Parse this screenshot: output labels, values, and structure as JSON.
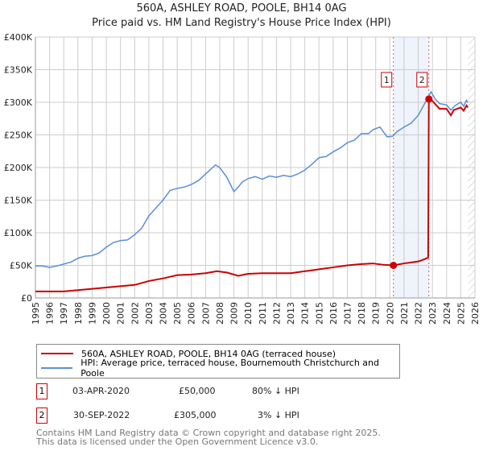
{
  "title": "560A, ASHLEY ROAD, POOLE, BH14 0AG",
  "subtitle": "Price paid vs. HM Land Registry's House Price Index (HPI)",
  "chart_data": {
    "type": "line",
    "xlim": [
      1995,
      2026
    ],
    "ylim": [
      0,
      400000
    ],
    "x_ticks": [
      "1995",
      "1996",
      "1997",
      "1998",
      "1999",
      "2000",
      "2001",
      "2002",
      "2003",
      "2004",
      "2005",
      "2006",
      "2007",
      "2008",
      "2009",
      "2010",
      "2011",
      "2012",
      "2013",
      "2014",
      "2015",
      "2016",
      "2017",
      "2018",
      "2019",
      "2020",
      "2021",
      "2022",
      "2023",
      "2024",
      "2025",
      "2026"
    ],
    "y_ticks": [
      {
        "v": 0,
        "label": "£0"
      },
      {
        "v": 50000,
        "label": "£50K"
      },
      {
        "v": 100000,
        "label": "£100K"
      },
      {
        "v": 150000,
        "label": "£150K"
      },
      {
        "v": 200000,
        "label": "£200K"
      },
      {
        "v": 250000,
        "label": "£250K"
      },
      {
        "v": 300000,
        "label": "£300K"
      },
      {
        "v": 350000,
        "label": "£350K"
      },
      {
        "v": 400000,
        "label": "£400K"
      }
    ],
    "shaded_range": [
      2020.25,
      2022.75
    ],
    "forecast_from": 2025.5,
    "series": [
      {
        "name": "560A, ASHLEY ROAD, POOLE, BH14 0AG (terraced house)",
        "color": "#cc0000",
        "x": [
          1995,
          1996,
          1997,
          1998,
          1999,
          2000,
          2001,
          2002,
          2003,
          2004,
          2005,
          2006,
          2007,
          2007.8,
          2008.5,
          2009.3,
          2010,
          2011,
          2012,
          2013,
          2014,
          2015,
          2016,
          2017,
          2018,
          2018.8,
          2019.5,
          2020.25,
          2021,
          2022,
          2022.5,
          2022.7,
          2022.75,
          2023,
          2023.5,
          2024,
          2024.3,
          2024.5,
          2025,
          2025.2,
          2025.4,
          2025.5
        ],
        "y": [
          10000,
          10000,
          10000,
          12000,
          14000,
          16000,
          18000,
          20000,
          26000,
          30000,
          35000,
          36000,
          38000,
          41000,
          39000,
          34000,
          37000,
          38000,
          38000,
          38000,
          41000,
          44000,
          47000,
          50000,
          52000,
          53000,
          51000,
          50000,
          53000,
          56000,
          60000,
          62000,
          305000,
          302000,
          290000,
          290000,
          280000,
          288000,
          292000,
          287000,
          295000,
          292000
        ]
      },
      {
        "name": "HPI: Average price, terraced house, Bournemouth Christchurch and Poole",
        "color": "#5b8fd4",
        "x": [
          1995,
          1995.5,
          1996,
          1996.5,
          1997,
          1997.5,
          1998,
          1998.5,
          1999,
          1999.5,
          2000,
          2000.5,
          2001,
          2001.5,
          2002,
          2002.5,
          2003,
          2003.5,
          2004,
          2004.5,
          2005,
          2005.5,
          2006,
          2006.5,
          2007,
          2007.7,
          2008,
          2008.5,
          2009,
          2009.3,
          2009.6,
          2010,
          2010.5,
          2011,
          2011.5,
          2012,
          2012.5,
          2013,
          2013.5,
          2014,
          2014.5,
          2015,
          2015.5,
          2016,
          2016.5,
          2017,
          2017.5,
          2018,
          2018.5,
          2018.8,
          2019.3,
          2019.8,
          2020.2,
          2020.5,
          2021,
          2021.5,
          2022,
          2022.5,
          2022.9,
          2023.2,
          2023.5,
          2024,
          2024.3,
          2024.6,
          2025,
          2025.2,
          2025.4,
          2025.5
        ],
        "y": [
          49000,
          49000,
          47000,
          49000,
          52000,
          55000,
          61000,
          64000,
          65000,
          69000,
          78000,
          85000,
          88000,
          89000,
          97000,
          107000,
          126000,
          138000,
          150000,
          165000,
          168000,
          170000,
          174000,
          180000,
          190000,
          204000,
          200000,
          185000,
          163000,
          170000,
          178000,
          183000,
          186000,
          182000,
          187000,
          185000,
          188000,
          186000,
          190000,
          196000,
          205000,
          215000,
          217000,
          224000,
          230000,
          238000,
          242000,
          252000,
          252000,
          258000,
          262000,
          247000,
          248000,
          255000,
          262000,
          268000,
          280000,
          300000,
          316000,
          305000,
          298000,
          296000,
          288000,
          295000,
          300000,
          294000,
          303000,
          300000
        ]
      }
    ],
    "sales": [
      {
        "n": "1",
        "x": 2020.25,
        "y": 50000,
        "date": "03-APR-2020",
        "price": "£50,000",
        "hpi": "80% ↓ HPI"
      },
      {
        "n": "2",
        "x": 2022.75,
        "y": 305000,
        "date": "30-SEP-2022",
        "price": "£305,000",
        "hpi": "3% ↓ HPI"
      }
    ]
  },
  "footer": [
    "Contains HM Land Registry data © Crown copyright and database right 2025.",
    "This data is licensed under the Open Government Licence v3.0."
  ]
}
